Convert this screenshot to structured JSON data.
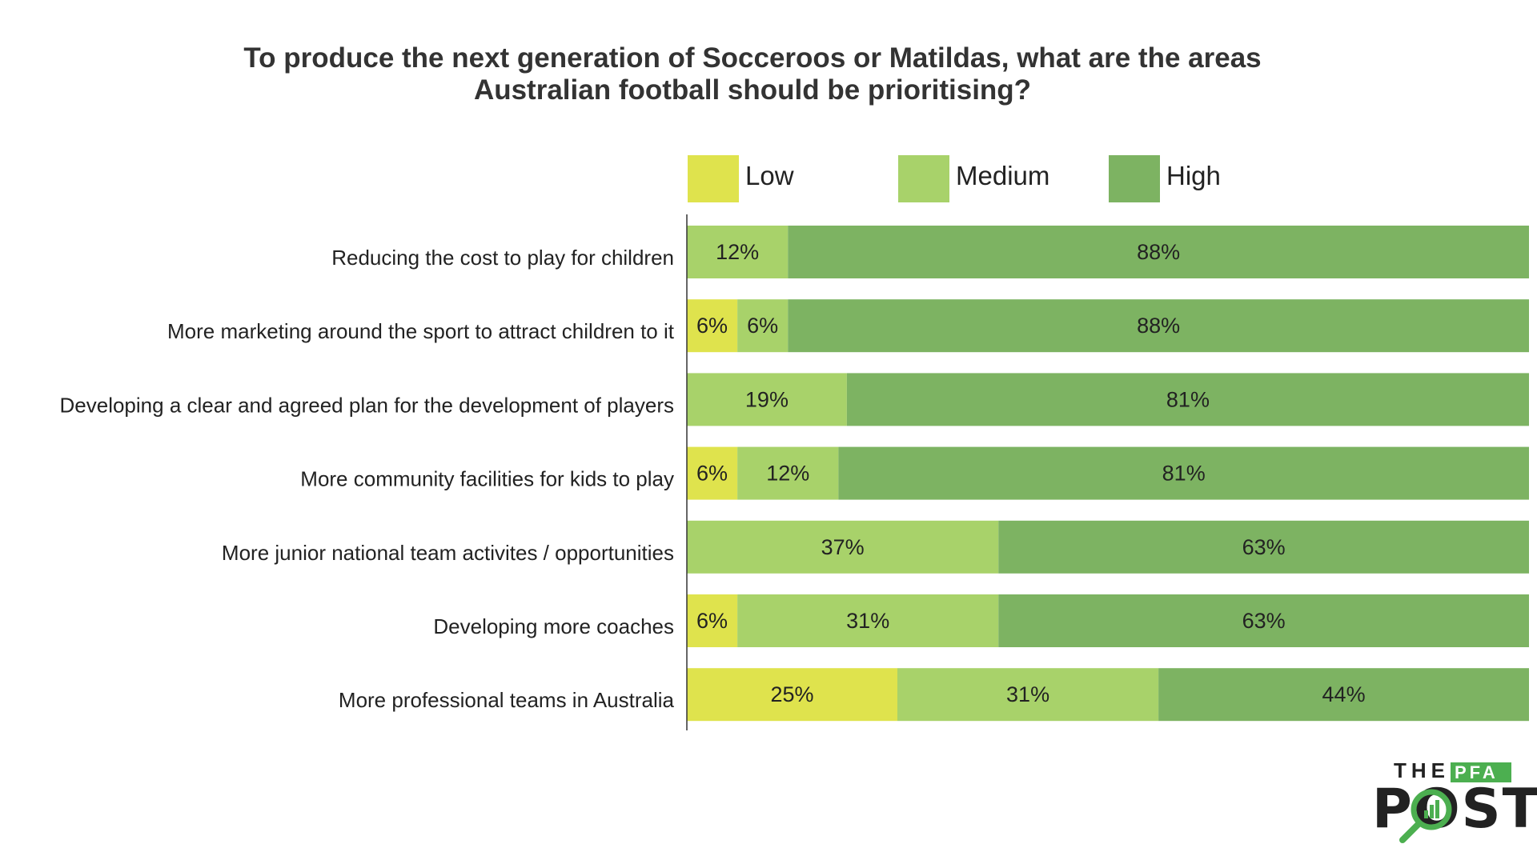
{
  "chart_data": {
    "type": "bar",
    "orientation": "horizontal",
    "stacked": true,
    "title_lines": [
      "To produce the next generation of Socceroos or Matildas, what are the areas",
      "Australian football should be prioritising?"
    ],
    "categories": [
      "Reducing the cost to play for children",
      "More marketing around the sport to attract children to it",
      "Developing a clear and agreed plan for the development of players",
      "More community facilities for kids to play",
      "More junior national team activites / opportunities",
      "Developing more coaches",
      "More professional teams in Australia"
    ],
    "series": [
      {
        "name": "Low",
        "color": "#dfe34d",
        "values": [
          0,
          6,
          0,
          6,
          0,
          6,
          25
        ],
        "labels": [
          "",
          "6%",
          "",
          "6%",
          "",
          "6%",
          "25%"
        ]
      },
      {
        "name": "Medium",
        "color": "#a8d26a",
        "values": [
          12,
          6,
          19,
          12,
          37,
          31,
          31
        ],
        "labels": [
          "12%",
          "6%",
          "19%",
          "12%",
          "37%",
          "31%",
          "31%"
        ]
      },
      {
        "name": "High",
        "color": "#7db362",
        "values": [
          88,
          88,
          81,
          81,
          63,
          63,
          44
        ],
        "labels": [
          "88%",
          "88%",
          "81%",
          "81%",
          "63%",
          "63%",
          "44%"
        ]
      }
    ],
    "xlim": [
      0,
      100
    ],
    "xlabel": "",
    "ylabel": "",
    "legend_position": "top",
    "grid": false
  },
  "logo": {
    "the": "THE",
    "pfa": "PFA",
    "post": "POST",
    "accent_color": "#4caf50"
  }
}
